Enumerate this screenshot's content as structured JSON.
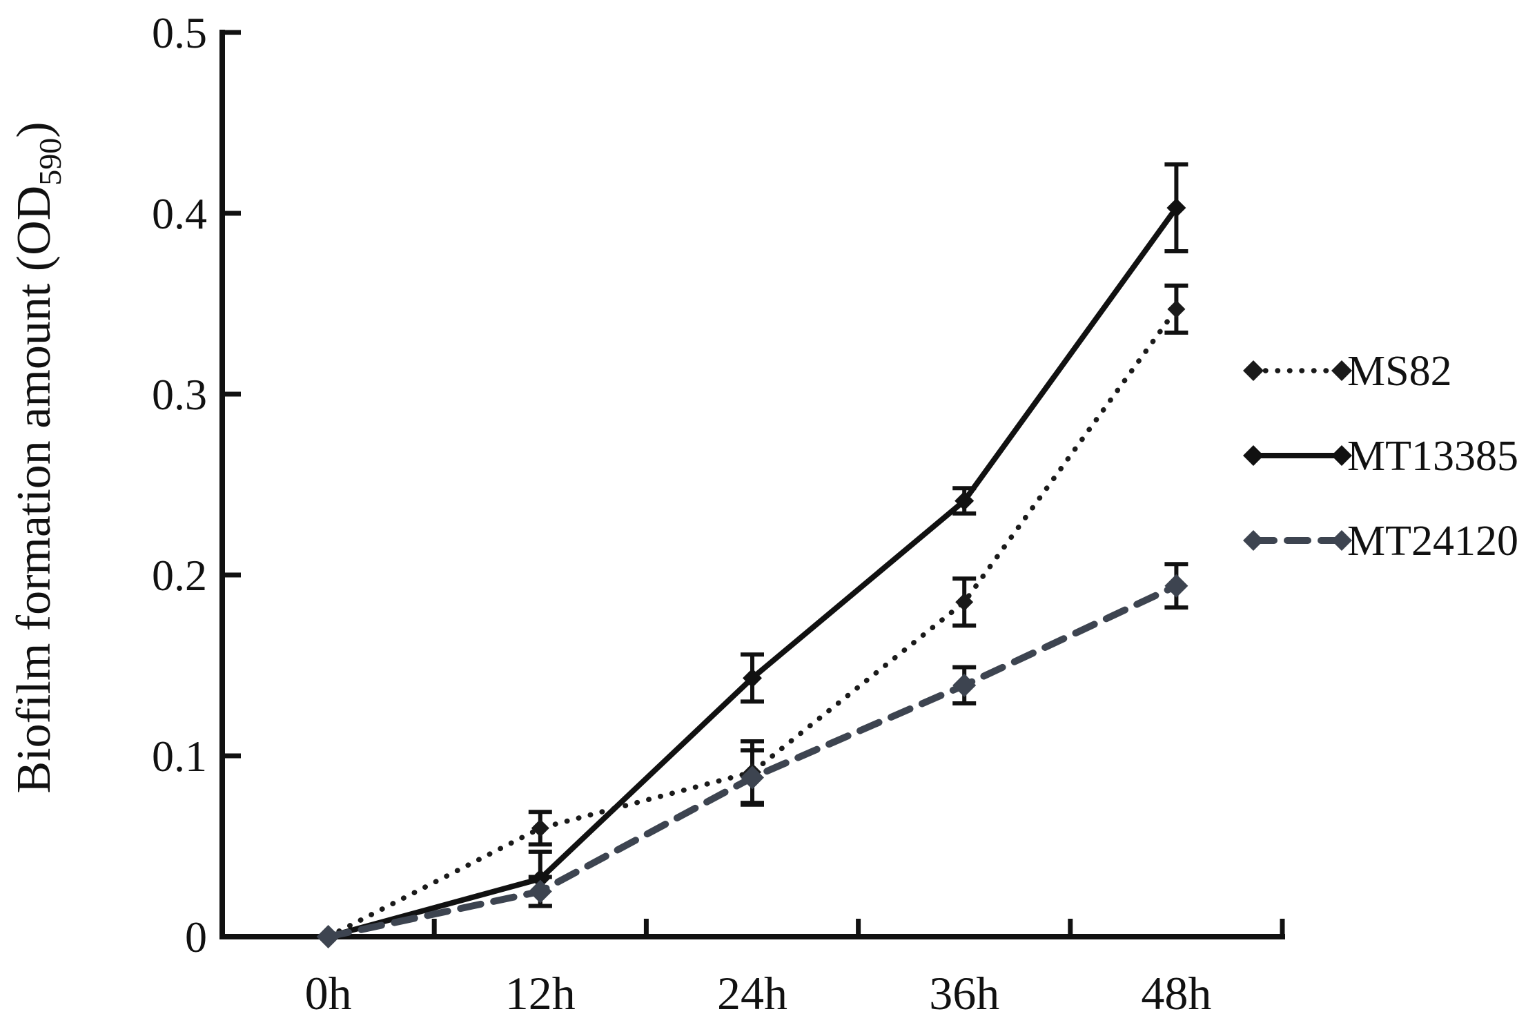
{
  "figure": {
    "background": "#ffffff",
    "axis_color": "#111111"
  },
  "chart_data": {
    "type": "line",
    "title": "",
    "xlabel": "",
    "ylabel": {
      "prefix": "Biofilm formation amount (OD",
      "sub": "590",
      "suffix": ")"
    },
    "categories": [
      "0h",
      "12h",
      "24h",
      "36h",
      "48h"
    ],
    "series": [
      {
        "name": "MS82",
        "style": "dotted",
        "color": "#1a1a1a",
        "marker": "diamond",
        "values": [
          0,
          0.06,
          0.091,
          0.185,
          0.347
        ],
        "errors": [
          0,
          0.009,
          0.017,
          0.013,
          0.013
        ]
      },
      {
        "name": "MT13385",
        "style": "solid",
        "color": "#111111",
        "marker": "diamond",
        "values": [
          0,
          0.032,
          0.143,
          0.241,
          0.403
        ],
        "errors": [
          0,
          0.015,
          0.013,
          0.007,
          0.024
        ]
      },
      {
        "name": "MT24120",
        "style": "dashed",
        "color": "#3d4450",
        "marker": "diamond",
        "values": [
          0,
          0.025,
          0.088,
          0.139,
          0.194
        ],
        "errors": [
          0,
          0.008,
          0.015,
          0.01,
          0.012
        ]
      }
    ],
    "yticks": [
      {
        "label": "0",
        "value": 0
      },
      {
        "label": "0.1",
        "value": 0.1
      },
      {
        "label": "0.2",
        "value": 0.2
      },
      {
        "label": "0.3",
        "value": 0.3
      },
      {
        "label": "0.4",
        "value": 0.4
      },
      {
        "label": "0.5",
        "value": 0.5
      }
    ],
    "ylim": [
      0,
      0.5
    ],
    "grid": false,
    "legend_position": "right",
    "error_bar_color": "#111111"
  }
}
